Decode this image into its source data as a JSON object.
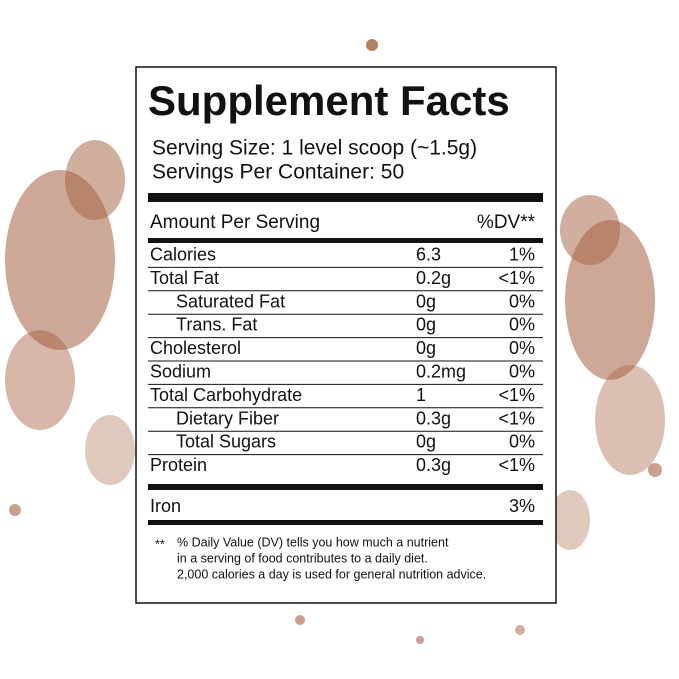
{
  "label": {
    "title": "Supplement Facts",
    "serving_size": "Serving Size: 1 level scoop (~1.5g)",
    "servings_per_container": "Servings Per Container:  50",
    "header": {
      "amount": "Amount Per Serving",
      "dv": "%DV**"
    },
    "rows": [
      {
        "name": "Calories",
        "amount": "6.3",
        "dv": "1%"
      },
      {
        "name": "Total Fat",
        "amount": "0.2g",
        "dv": "<1%"
      },
      {
        "name": "Saturated Fat",
        "amount": "0g",
        "dv": "0%"
      },
      {
        "name": "Trans. Fat",
        "amount": "0g",
        "dv": "0%"
      },
      {
        "name": "Cholesterol",
        "amount": "0g",
        "dv": "0%"
      },
      {
        "name": "Sodium",
        "amount": "0.2mg",
        "dv": "0%"
      },
      {
        "name": "Total Carbohydrate",
        "amount": "1",
        "dv": "<1%"
      },
      {
        "name": "Dietary Fiber",
        "amount": "0.3g",
        "dv": "<1%"
      },
      {
        "name": "Total Sugars",
        "amount": "0g",
        "dv": "0%"
      },
      {
        "name": "Protein",
        "amount": "0.3g",
        "dv": "<1%"
      }
    ],
    "other_rows": [
      {
        "name": "Iron",
        "dv": "3%"
      }
    ],
    "footnote": {
      "marker": "**",
      "lines": [
        "% Daily Value (DV) tells you how much a nutrient",
        "in a serving of food contributes to a daily diet.",
        "2,000 calories a day is used for general nutrition advice."
      ]
    }
  }
}
